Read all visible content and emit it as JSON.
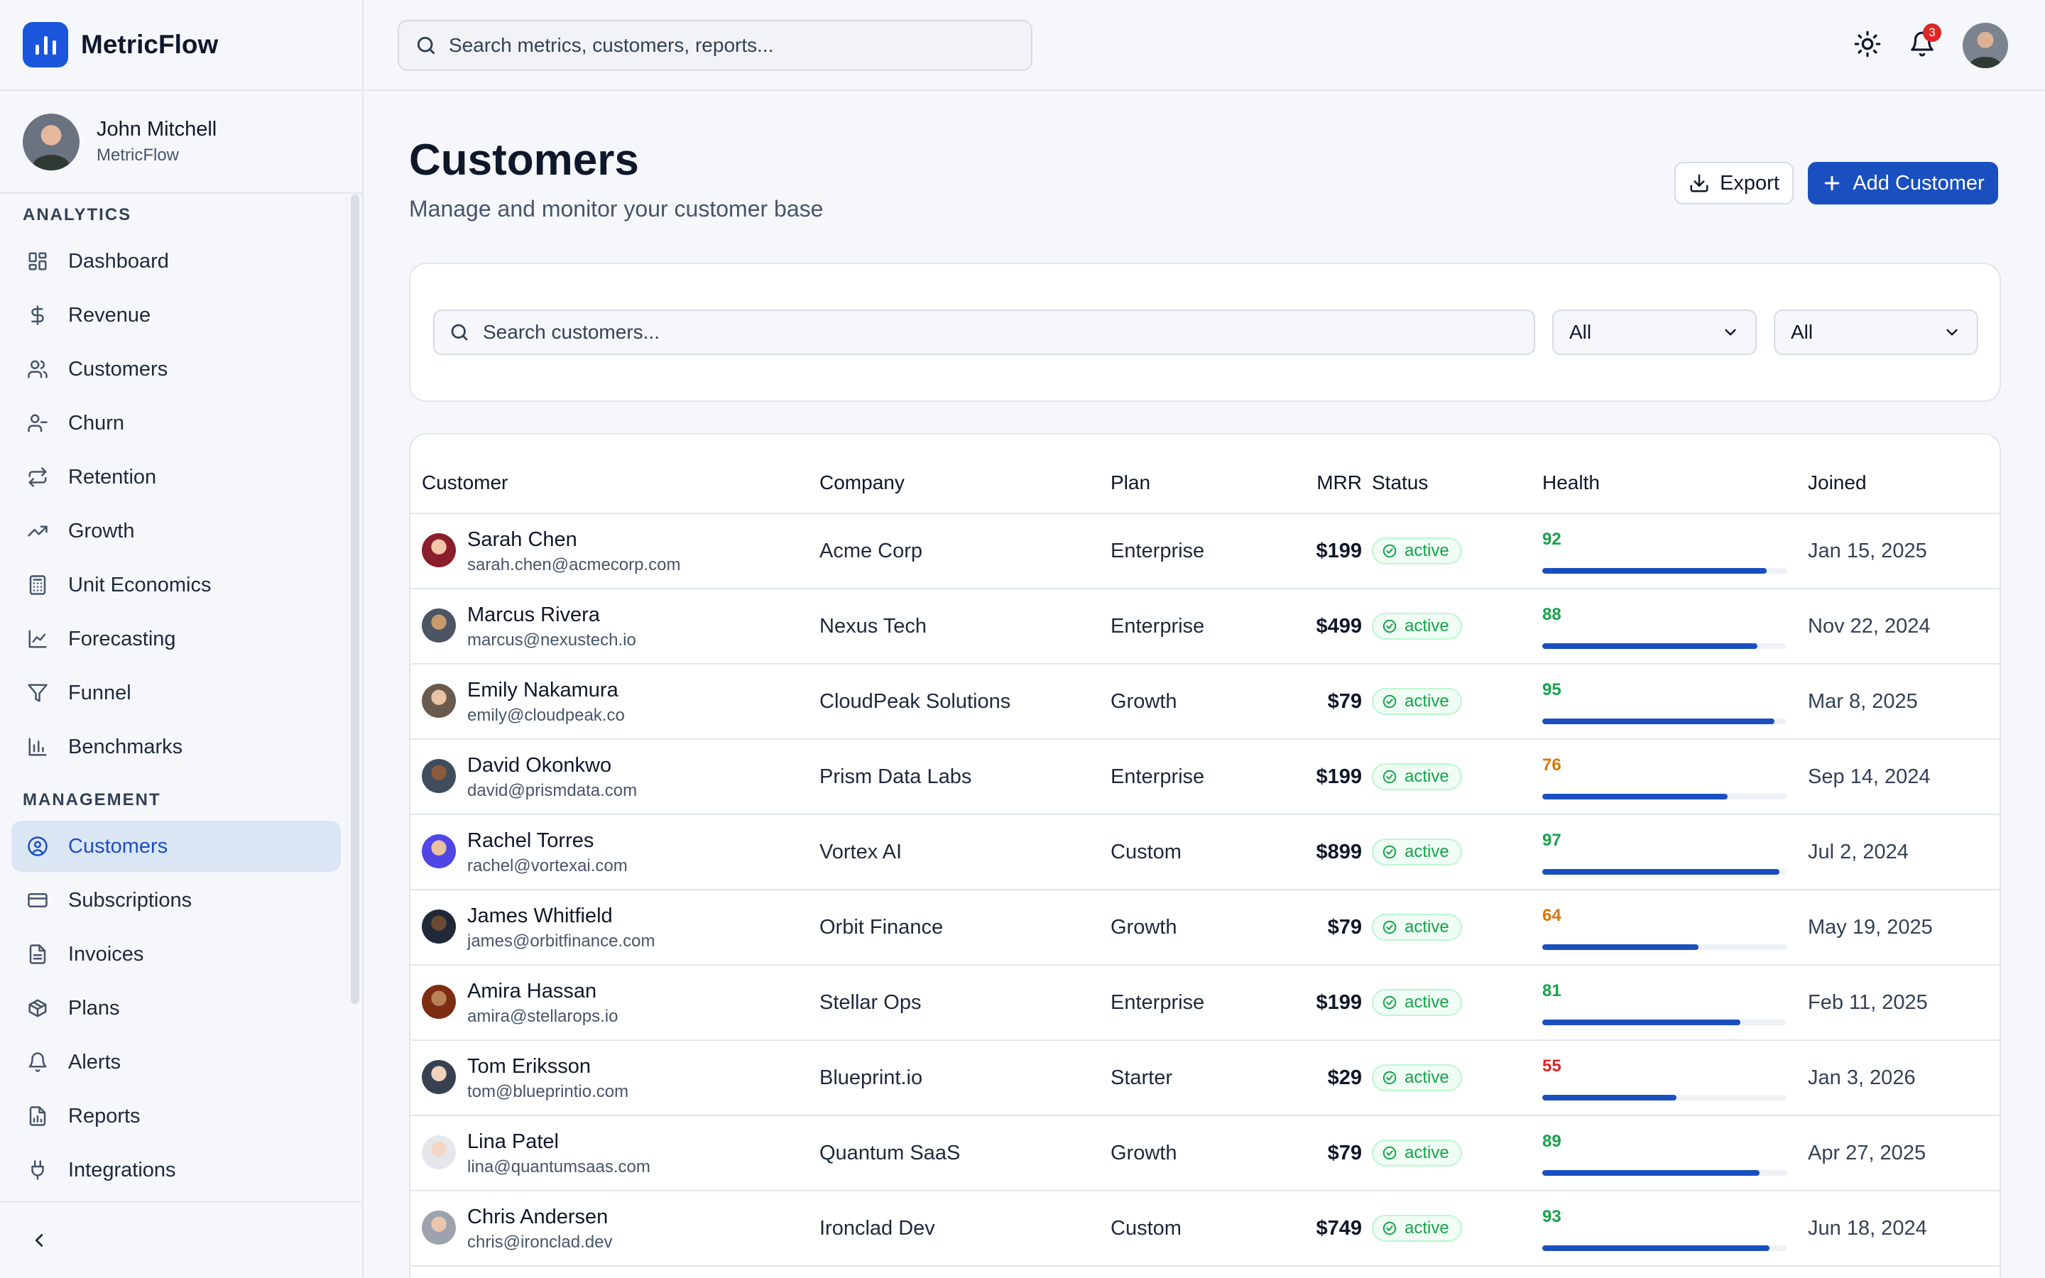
{
  "brand": {
    "name": "MetricFlow"
  },
  "user": {
    "name": "John Mitchell",
    "org": "MetricFlow"
  },
  "sidebar": {
    "analytics_label": "ANALYTICS",
    "analytics_items": [
      {
        "label": "Dashboard",
        "icon": "dashboard-icon"
      },
      {
        "label": "Revenue",
        "icon": "dollar-icon"
      },
      {
        "label": "Customers",
        "icon": "users-icon"
      },
      {
        "label": "Churn",
        "icon": "user-minus-icon"
      },
      {
        "label": "Retention",
        "icon": "repeat-icon"
      },
      {
        "label": "Growth",
        "icon": "trending-up-icon"
      },
      {
        "label": "Unit Economics",
        "icon": "calculator-icon"
      },
      {
        "label": "Forecasting",
        "icon": "line-chart-icon"
      },
      {
        "label": "Funnel",
        "icon": "funnel-icon"
      },
      {
        "label": "Benchmarks",
        "icon": "bar-chart-icon"
      }
    ],
    "management_label": "MANAGEMENT",
    "management_items": [
      {
        "label": "Customers",
        "icon": "user-circle-icon",
        "active": true
      },
      {
        "label": "Subscriptions",
        "icon": "credit-card-icon"
      },
      {
        "label": "Invoices",
        "icon": "file-icon"
      },
      {
        "label": "Plans",
        "icon": "package-icon"
      },
      {
        "label": "Alerts",
        "icon": "bell-icon"
      },
      {
        "label": "Reports",
        "icon": "report-icon"
      },
      {
        "label": "Integrations",
        "icon": "plug-icon"
      }
    ]
  },
  "topbar": {
    "search_placeholder": "Search metrics, customers, reports...",
    "notification_count": "3"
  },
  "page": {
    "title": "Customers",
    "subtitle": "Manage and monitor your customer base",
    "export_label": "Export",
    "add_label": "Add Customer"
  },
  "filters": {
    "search_placeholder": "Search customers...",
    "plan_value": "All",
    "status_value": "All"
  },
  "table": {
    "headers": [
      "Customer",
      "Company",
      "Plan",
      "MRR",
      "Status",
      "Health",
      "Joined"
    ],
    "rows": [
      {
        "name": "Sarah Chen",
        "email": "sarah.chen@acmecorp.com",
        "company": "Acme Corp",
        "plan": "Enterprise",
        "mrr": "$199",
        "status": "active",
        "health": "92",
        "joined": "Jan 15, 2025"
      },
      {
        "name": "Marcus Rivera",
        "email": "marcus@nexustech.io",
        "company": "Nexus Tech",
        "plan": "Enterprise",
        "mrr": "$499",
        "status": "active",
        "health": "88",
        "joined": "Nov 22, 2024"
      },
      {
        "name": "Emily Nakamura",
        "email": "emily@cloudpeak.co",
        "company": "CloudPeak Solutions",
        "plan": "Growth",
        "mrr": "$79",
        "status": "active",
        "health": "95",
        "joined": "Mar 8, 2025"
      },
      {
        "name": "David Okonkwo",
        "email": "david@prismdata.com",
        "company": "Prism Data Labs",
        "plan": "Enterprise",
        "mrr": "$199",
        "status": "active",
        "health": "76",
        "joined": "Sep 14, 2024"
      },
      {
        "name": "Rachel Torres",
        "email": "rachel@vortexai.com",
        "company": "Vortex AI",
        "plan": "Custom",
        "mrr": "$899",
        "status": "active",
        "health": "97",
        "joined": "Jul 2, 2024"
      },
      {
        "name": "James Whitfield",
        "email": "james@orbitfinance.com",
        "company": "Orbit Finance",
        "plan": "Growth",
        "mrr": "$79",
        "status": "active",
        "health": "64",
        "joined": "May 19, 2025"
      },
      {
        "name": "Amira Hassan",
        "email": "amira@stellarops.io",
        "company": "Stellar Ops",
        "plan": "Enterprise",
        "mrr": "$199",
        "status": "active",
        "health": "81",
        "joined": "Feb 11, 2025"
      },
      {
        "name": "Tom Eriksson",
        "email": "tom@blueprintio.com",
        "company": "Blueprint.io",
        "plan": "Starter",
        "mrr": "$29",
        "status": "active",
        "health": "55",
        "joined": "Jan 3, 2026"
      },
      {
        "name": "Lina Patel",
        "email": "lina@quantumsaas.com",
        "company": "Quantum SaaS",
        "plan": "Growth",
        "mrr": "$79",
        "status": "active",
        "health": "89",
        "joined": "Apr 27, 2025"
      },
      {
        "name": "Chris Andersen",
        "email": "chris@ironclad.dev",
        "company": "Ironclad Dev",
        "plan": "Custom",
        "mrr": "$749",
        "status": "active",
        "health": "93",
        "joined": "Jun 18, 2024"
      }
    ]
  },
  "colors": {
    "accent": "#1a4fbf",
    "health_good": "#16a34a",
    "health_warn": "#d97706",
    "health_bad": "#dc2626",
    "status_active": "#16a34a"
  }
}
